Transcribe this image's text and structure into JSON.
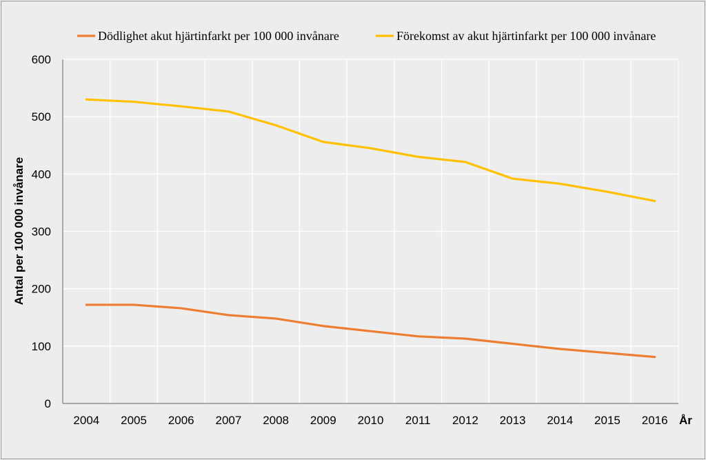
{
  "chart_data": {
    "type": "line",
    "x": [
      "2004",
      "2005",
      "2006",
      "2007",
      "2008",
      "2009",
      "2010",
      "2011",
      "2012",
      "2013",
      "2014",
      "2015",
      "2016"
    ],
    "series": [
      {
        "name": "Dödlighet akut hjärtinfarkt per 100 000 invånare",
        "color": "#ed7d31",
        "values": [
          172,
          172,
          166,
          154,
          148,
          135,
          126,
          117,
          113,
          104,
          95,
          88,
          81
        ]
      },
      {
        "name": "Förekomst av akut hjärtinfarkt  per 100 000 invånare",
        "color": "#ffc000",
        "values": [
          530,
          526,
          518,
          509,
          485,
          456,
          445,
          430,
          421,
          392,
          383,
          369,
          353
        ]
      }
    ],
    "ylabel": "Antal per 100 000 invånare",
    "xlabel": "År",
    "ylim": [
      0,
      600
    ],
    "yticks": [
      0,
      100,
      200,
      300,
      400,
      500,
      600
    ],
    "grid": "vertical and horizontal, white",
    "legend_position": "top"
  }
}
